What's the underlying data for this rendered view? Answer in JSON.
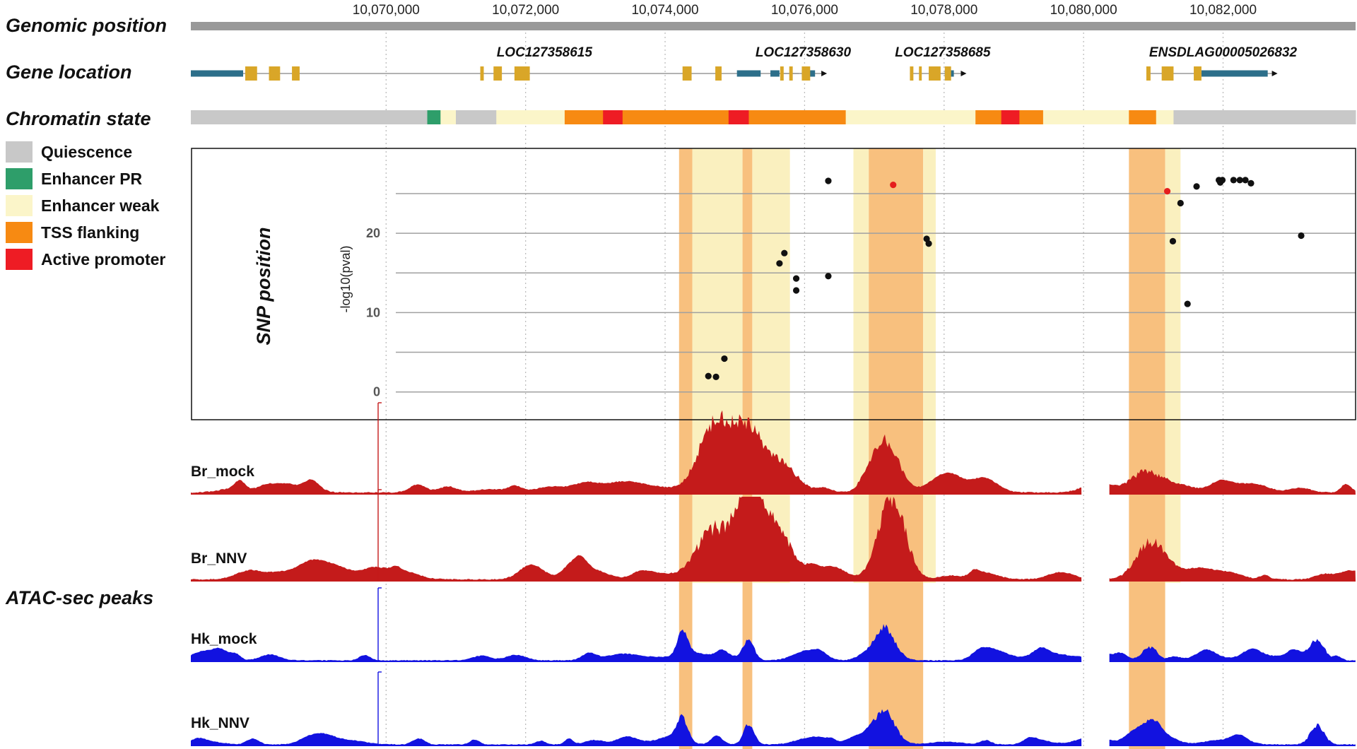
{
  "colors": {
    "quiescence": "#c8c8c8",
    "enhancer_pr": "#2e9e6a",
    "enhancer_weak": "#fbf5c9",
    "tss_flanking": "#f78a12",
    "active_promoter": "#ee1c24",
    "gene_utr": "#2d6f8a",
    "gene_exon": "#d9a628",
    "highlight_orange": "#f8c07e",
    "highlight_yellow": "#faf0bf",
    "br_track": "#c41b1b",
    "hk_track": "#1212e0",
    "snp_dot": "#111111",
    "snp_lead": "#e51e1e",
    "axis_bar": "#999999"
  },
  "sections": {
    "genomic_position": "Genomic position",
    "gene_location": "Gene location",
    "chromatin_state": "Chromatin state",
    "snp_position": "SNP position",
    "atac_peaks": "ATAC-sec peaks"
  },
  "legend": [
    {
      "label": "Quiescence",
      "color": "#c8c8c8"
    },
    {
      "label": "Enhancer PR",
      "color": "#2e9e6a"
    },
    {
      "label": "Enhancer weak",
      "color": "#fbf5c9"
    },
    {
      "label": "TSS flanking",
      "color": "#f78a12"
    },
    {
      "label": "Active promoter",
      "color": "#ee1c24"
    }
  ],
  "chart_data": {
    "type": "scatter",
    "x_range": [
      10067200,
      10083900
    ],
    "x_ticks": [
      {
        "value": 10070000,
        "label": "10,070,000"
      },
      {
        "value": 10072000,
        "label": "10,072,000"
      },
      {
        "value": 10074000,
        "label": "10,074,000"
      },
      {
        "value": 10076000,
        "label": "10,076,000"
      },
      {
        "value": 10078000,
        "label": "10,078,000"
      },
      {
        "value": 10080000,
        "label": "10,080,000"
      },
      {
        "value": 10082000,
        "label": "10,082,000"
      }
    ],
    "genes": [
      {
        "name": "LOC127358615",
        "label_x": 10072270,
        "start": 10067200,
        "end": 10075920,
        "utr": [
          [
            10067200,
            10067950
          ],
          [
            10075030,
            10075370
          ]
        ],
        "exons": [
          [
            10067980,
            10068150
          ],
          [
            10068320,
            10068480
          ],
          [
            10068650,
            10068760
          ],
          [
            10071350,
            10071400
          ],
          [
            10071540,
            10071660
          ],
          [
            10071840,
            10072060
          ],
          [
            10074250,
            10074380
          ],
          [
            10074720,
            10074810
          ]
        ]
      },
      {
        "name": "LOC127358630",
        "label_x": 10075980,
        "start": 10075510,
        "end": 10076240,
        "strand": "+",
        "utr": [
          [
            10075510,
            10075640
          ],
          [
            10075960,
            10076150
          ]
        ],
        "exons": [
          [
            10075650,
            10075700
          ],
          [
            10075780,
            10075830
          ],
          [
            10075960,
            10076080
          ]
        ]
      },
      {
        "name": "LOC127358685",
        "label_x": 10077980,
        "start": 10077510,
        "end": 10078240,
        "strand": "+",
        "utr": [
          [
            10078010,
            10078140
          ]
        ],
        "exons": [
          [
            10077510,
            10077560
          ],
          [
            10077640,
            10077680
          ],
          [
            10077780,
            10077950
          ],
          [
            10078010,
            10078100
          ]
        ]
      },
      {
        "name": "ENSDLAG00005026832",
        "label_x": 10082000,
        "start": 10080900,
        "end": 10082700,
        "strand": "+",
        "utr": [
          [
            10081690,
            10082640
          ]
        ],
        "exons": [
          [
            10080900,
            10080960
          ],
          [
            10081120,
            10081290
          ],
          [
            10081580,
            10081690
          ]
        ]
      }
    ],
    "chromatin_states": [
      {
        "start": 10067200,
        "end": 10070590,
        "state": "quiescence"
      },
      {
        "start": 10070590,
        "end": 10070780,
        "state": "enhancer_pr"
      },
      {
        "start": 10070780,
        "end": 10071000,
        "state": "enhancer_weak"
      },
      {
        "start": 10071000,
        "end": 10071580,
        "state": "quiescence"
      },
      {
        "start": 10071580,
        "end": 10072560,
        "state": "enhancer_weak"
      },
      {
        "start": 10072560,
        "end": 10073110,
        "state": "tss_flanking"
      },
      {
        "start": 10073110,
        "end": 10073390,
        "state": "active_promoter"
      },
      {
        "start": 10073390,
        "end": 10074910,
        "state": "tss_flanking"
      },
      {
        "start": 10074910,
        "end": 10075200,
        "state": "active_promoter"
      },
      {
        "start": 10075200,
        "end": 10076590,
        "state": "tss_flanking"
      },
      {
        "start": 10076590,
        "end": 10078450,
        "state": "enhancer_weak"
      },
      {
        "start": 10078450,
        "end": 10078820,
        "state": "tss_flanking"
      },
      {
        "start": 10078820,
        "end": 10079080,
        "state": "active_promoter"
      },
      {
        "start": 10079080,
        "end": 10079420,
        "state": "tss_flanking"
      },
      {
        "start": 10079420,
        "end": 10080650,
        "state": "enhancer_weak"
      },
      {
        "start": 10080650,
        "end": 10081040,
        "state": "tss_flanking"
      },
      {
        "start": 10081040,
        "end": 10081290,
        "state": "enhancer_weak"
      },
      {
        "start": 10081290,
        "end": 10083900,
        "state": "quiescence"
      }
    ],
    "highlight_regions": [
      {
        "start": 10074200,
        "end": 10074390,
        "color": "orange",
        "full_height": true
      },
      {
        "start": 10074390,
        "end": 10075110,
        "color": "yellow",
        "full_height": false
      },
      {
        "start": 10075110,
        "end": 10075250,
        "color": "orange",
        "full_height": true
      },
      {
        "start": 10075250,
        "end": 10075790,
        "color": "yellow",
        "full_height": false
      },
      {
        "start": 10076700,
        "end": 10076920,
        "color": "yellow",
        "full_height": false
      },
      {
        "start": 10076920,
        "end": 10077700,
        "color": "orange",
        "full_height": true
      },
      {
        "start": 10077700,
        "end": 10077880,
        "color": "yellow",
        "full_height": false
      },
      {
        "start": 10080650,
        "end": 10081170,
        "color": "orange",
        "full_height": true
      },
      {
        "start": 10081170,
        "end": 10081390,
        "color": "yellow",
        "full_height": false
      }
    ],
    "snp": {
      "ylabel": "-log10(pval)",
      "yticks": [
        0,
        10,
        20
      ],
      "ylim": [
        -3.5,
        30.7
      ],
      "gridlines": [
        0,
        5,
        10,
        15,
        20,
        25
      ],
      "points": [
        {
          "x": 10074620,
          "y": 2.0
        },
        {
          "x": 10074730,
          "y": 1.9
        },
        {
          "x": 10074850,
          "y": 4.2
        },
        {
          "x": 10075640,
          "y": 16.2
        },
        {
          "x": 10075710,
          "y": 17.5
        },
        {
          "x": 10075880,
          "y": 14.3
        },
        {
          "x": 10075880,
          "y": 12.8
        },
        {
          "x": 10076340,
          "y": 26.6
        },
        {
          "x": 10076340,
          "y": 14.6
        },
        {
          "x": 10077270,
          "y": 26.1,
          "lead": true
        },
        {
          "x": 10077750,
          "y": 19.3
        },
        {
          "x": 10077780,
          "y": 18.7
        },
        {
          "x": 10081200,
          "y": 25.3,
          "lead": true
        },
        {
          "x": 10081280,
          "y": 19.0
        },
        {
          "x": 10081390,
          "y": 23.8
        },
        {
          "x": 10081490,
          "y": 11.1
        },
        {
          "x": 10081620,
          "y": 25.9
        },
        {
          "x": 10081940,
          "y": 26.7
        },
        {
          "x": 10081960,
          "y": 26.4
        },
        {
          "x": 10081990,
          "y": 26.7
        },
        {
          "x": 10082150,
          "y": 26.7
        },
        {
          "x": 10082240,
          "y": 26.7
        },
        {
          "x": 10082320,
          "y": 26.7
        },
        {
          "x": 10082400,
          "y": 26.3
        },
        {
          "x": 10083120,
          "y": 19.7
        }
      ]
    },
    "atac_tracks": [
      {
        "name": "Br_mock",
        "color": "br",
        "seed": 11,
        "gap": [
          10079970,
          10080370
        ],
        "peaks": [
          {
            "c": 10074750,
            "w": 500,
            "h": 0.72
          },
          {
            "c": 10075200,
            "w": 380,
            "h": 0.65
          },
          {
            "c": 10075650,
            "w": 450,
            "h": 0.35
          },
          {
            "c": 10077150,
            "w": 400,
            "h": 0.48
          },
          {
            "c": 10080900,
            "w": 450,
            "h": 0.25
          }
        ]
      },
      {
        "name": "Br_NNV",
        "color": "br",
        "seed": 23,
        "gap": [
          10079970,
          10080370
        ],
        "peaks": [
          {
            "c": 10074700,
            "w": 500,
            "h": 0.58
          },
          {
            "c": 10075200,
            "w": 350,
            "h": 0.85
          },
          {
            "c": 10075600,
            "w": 420,
            "h": 0.52
          },
          {
            "c": 10077250,
            "w": 380,
            "h": 0.95
          },
          {
            "c": 10080950,
            "w": 400,
            "h": 0.4
          }
        ]
      },
      {
        "name": "Hk_mock",
        "color": "hk",
        "seed": 37,
        "gap": [
          10079970,
          10080370
        ],
        "peaks": [
          {
            "c": 10074250,
            "w": 150,
            "h": 0.35
          },
          {
            "c": 10075200,
            "w": 150,
            "h": 0.3
          },
          {
            "c": 10077150,
            "w": 300,
            "h": 0.42
          },
          {
            "c": 10080950,
            "w": 200,
            "h": 0.2
          },
          {
            "c": 10083350,
            "w": 200,
            "h": 0.28
          }
        ]
      },
      {
        "name": "Hk_NNV",
        "color": "hk",
        "seed": 53,
        "gap": [
          10079970,
          10080370
        ],
        "peaks": [
          {
            "c": 10074250,
            "w": 150,
            "h": 0.32
          },
          {
            "c": 10075200,
            "w": 150,
            "h": 0.3
          },
          {
            "c": 10077150,
            "w": 300,
            "h": 0.45
          },
          {
            "c": 10080950,
            "w": 200,
            "h": 0.2
          },
          {
            "c": 10083350,
            "w": 200,
            "h": 0.28
          }
        ]
      }
    ]
  }
}
